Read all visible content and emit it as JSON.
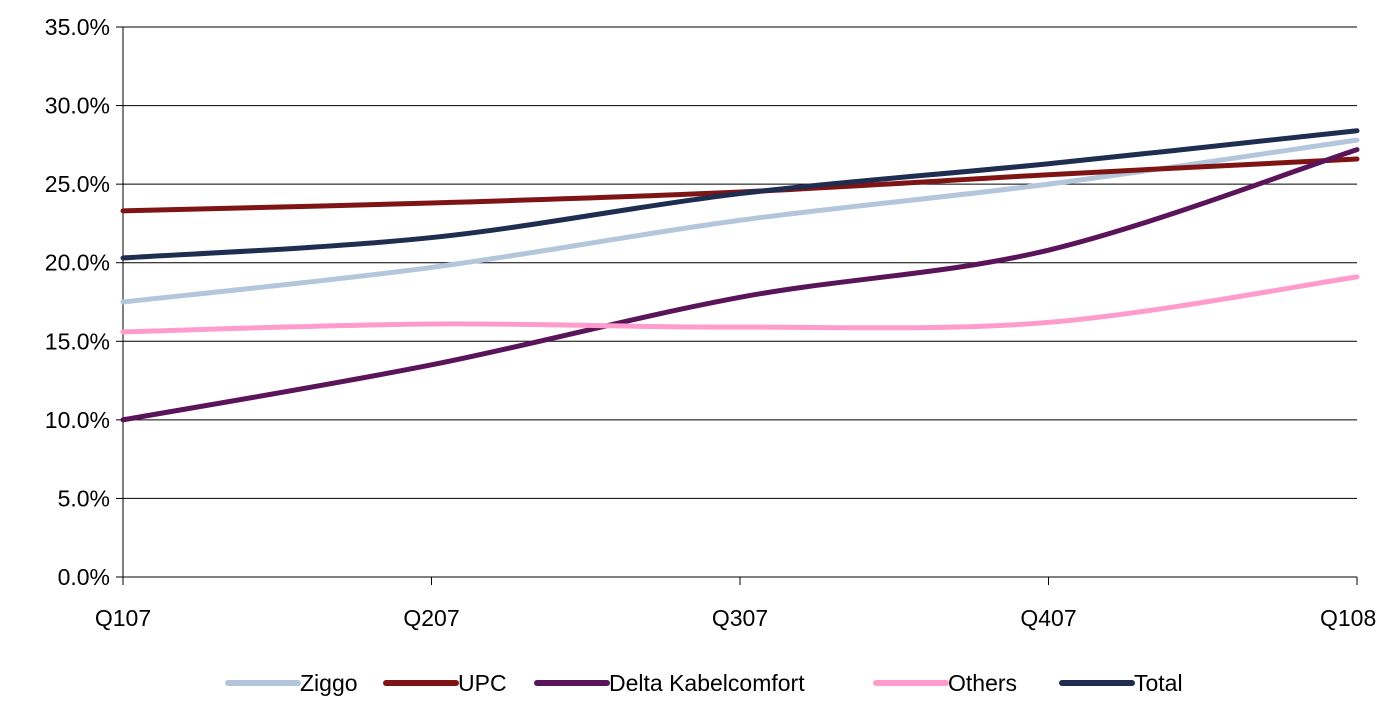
{
  "chart_data": {
    "type": "line",
    "categories": [
      "Q107",
      "Q207",
      "Q307",
      "Q407",
      "Q108"
    ],
    "y_tick_labels": [
      "0.0%",
      "5.0%",
      "10.0%",
      "15.0%",
      "20.0%",
      "25.0%",
      "30.0%",
      "35.0%"
    ],
    "ylim": [
      0,
      35
    ],
    "y_tick_step": 5,
    "grid": "horizontal",
    "legend_position": "bottom",
    "series": [
      {
        "name": "Ziggo",
        "color": "#b4c6dc",
        "values": [
          17.5,
          19.7,
          22.7,
          25.0,
          27.8
        ]
      },
      {
        "name": "UPC",
        "color": "#7f1414",
        "values": [
          23.3,
          23.8,
          24.5,
          25.6,
          26.6
        ]
      },
      {
        "name": "Delta Kabelcomfort",
        "color": "#5a145a",
        "values": [
          10.0,
          13.5,
          17.8,
          20.8,
          27.2
        ]
      },
      {
        "name": "Others",
        "color": "#ff9ccd",
        "values": [
          15.6,
          16.1,
          15.9,
          16.2,
          19.1
        ]
      },
      {
        "name": "Total",
        "color": "#1f2d50",
        "values": [
          20.3,
          21.6,
          24.4,
          26.3,
          28.4
        ]
      }
    ]
  }
}
